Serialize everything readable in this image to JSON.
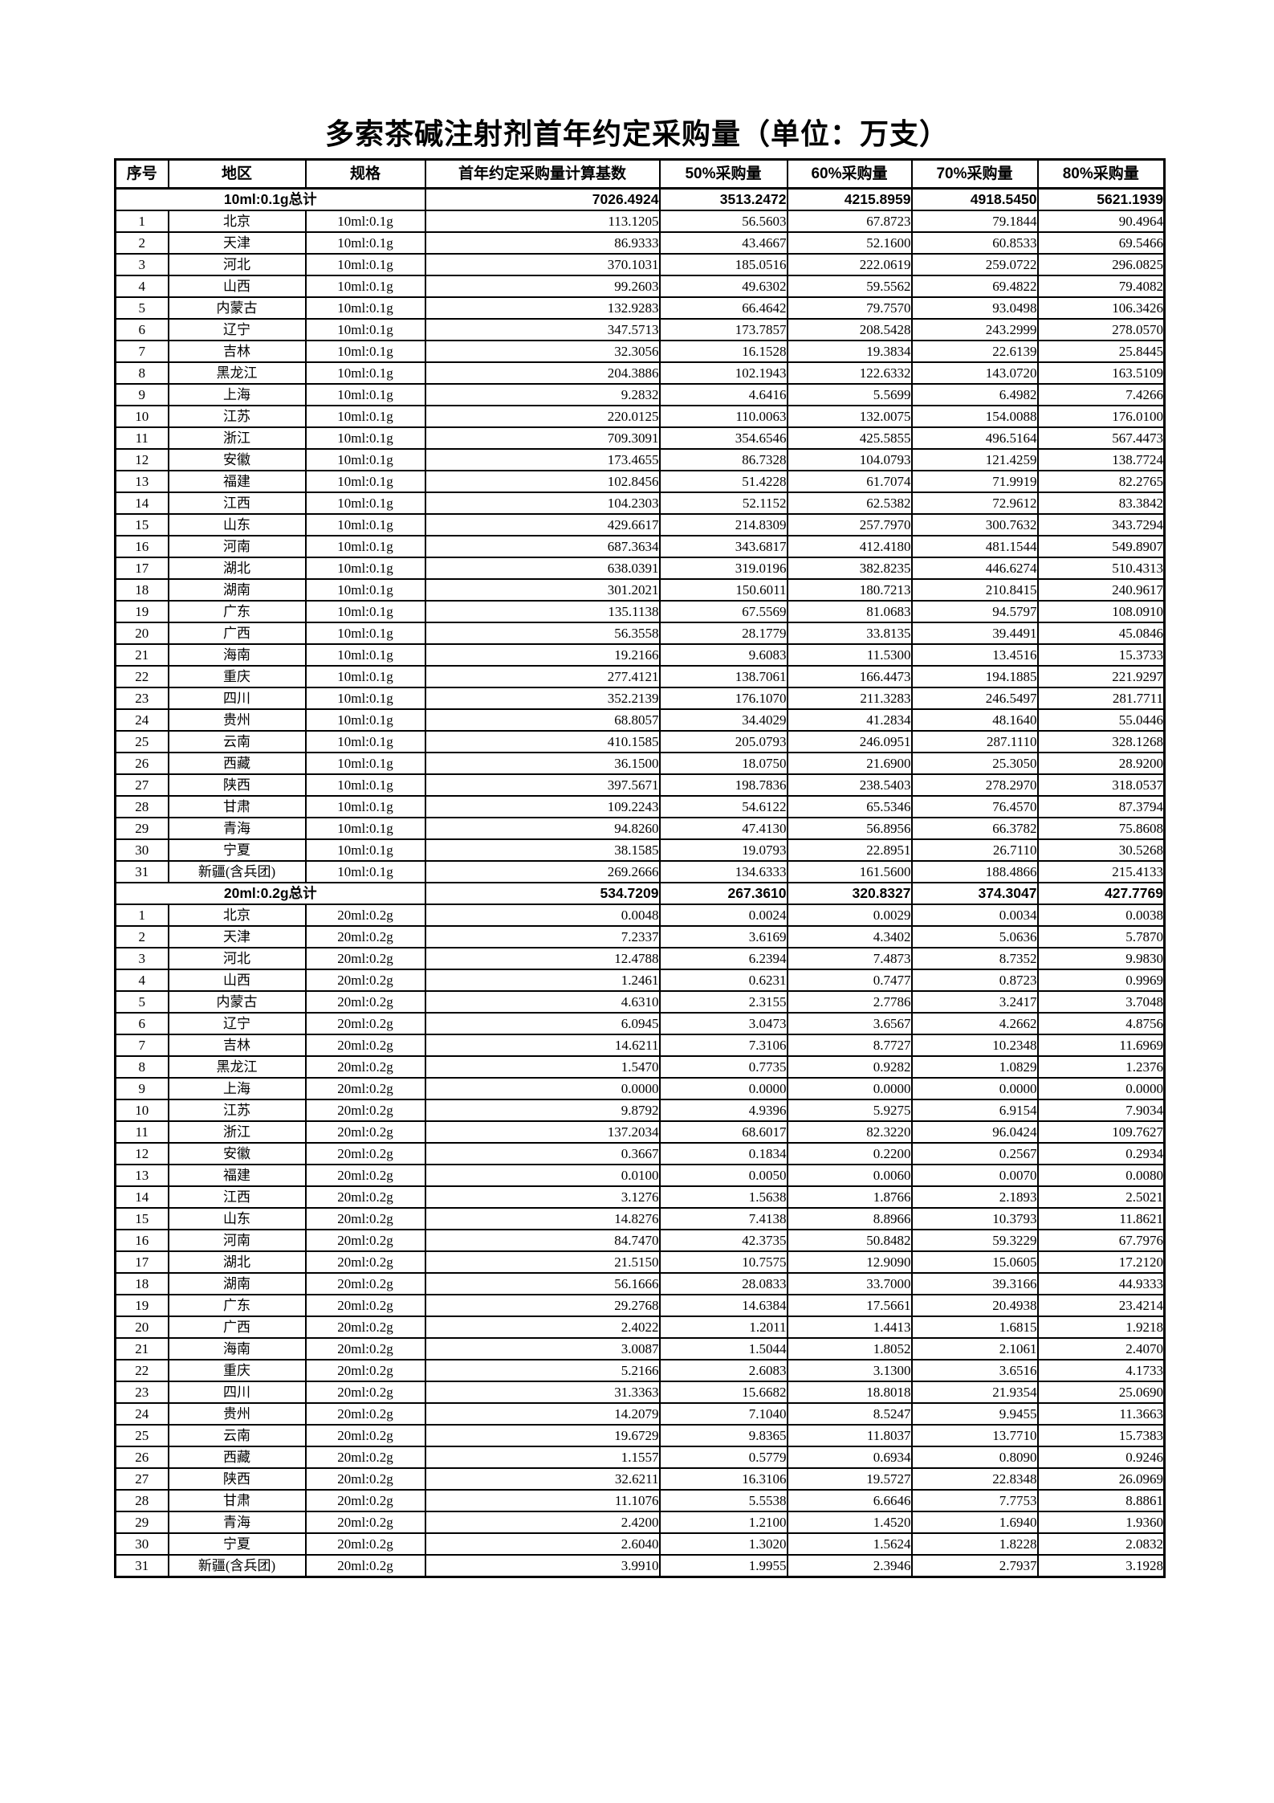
{
  "page": {
    "title": "多索茶碱注射剂首年约定采购量（单位：万支）"
  },
  "colors": {
    "text": "#000000",
    "background": "#ffffff",
    "border": "#000000"
  },
  "table": {
    "columns": [
      "序号",
      "地区",
      "规格",
      "首年约定采购量计算基数",
      "50%采购量",
      "60%采购量",
      "70%采购量",
      "80%采购量"
    ],
    "sections": [
      {
        "summary_label": "10ml:0.1g总计",
        "summary_values": [
          "7026.4924",
          "3513.2472",
          "4215.8959",
          "4918.5450",
          "5621.1939"
        ],
        "spec": "10ml:0.1g",
        "rows": [
          {
            "no": "1",
            "region": "北京",
            "values": [
              "113.1205",
              "56.5603",
              "67.8723",
              "79.1844",
              "90.4964"
            ]
          },
          {
            "no": "2",
            "region": "天津",
            "values": [
              "86.9333",
              "43.4667",
              "52.1600",
              "60.8533",
              "69.5466"
            ]
          },
          {
            "no": "3",
            "region": "河北",
            "values": [
              "370.1031",
              "185.0516",
              "222.0619",
              "259.0722",
              "296.0825"
            ]
          },
          {
            "no": "4",
            "region": "山西",
            "values": [
              "99.2603",
              "49.6302",
              "59.5562",
              "69.4822",
              "79.4082"
            ]
          },
          {
            "no": "5",
            "region": "内蒙古",
            "values": [
              "132.9283",
              "66.4642",
              "79.7570",
              "93.0498",
              "106.3426"
            ]
          },
          {
            "no": "6",
            "region": "辽宁",
            "values": [
              "347.5713",
              "173.7857",
              "208.5428",
              "243.2999",
              "278.0570"
            ]
          },
          {
            "no": "7",
            "region": "吉林",
            "values": [
              "32.3056",
              "16.1528",
              "19.3834",
              "22.6139",
              "25.8445"
            ]
          },
          {
            "no": "8",
            "region": "黑龙江",
            "values": [
              "204.3886",
              "102.1943",
              "122.6332",
              "143.0720",
              "163.5109"
            ]
          },
          {
            "no": "9",
            "region": "上海",
            "values": [
              "9.2832",
              "4.6416",
              "5.5699",
              "6.4982",
              "7.4266"
            ]
          },
          {
            "no": "10",
            "region": "江苏",
            "values": [
              "220.0125",
              "110.0063",
              "132.0075",
              "154.0088",
              "176.0100"
            ]
          },
          {
            "no": "11",
            "region": "浙江",
            "values": [
              "709.3091",
              "354.6546",
              "425.5855",
              "496.5164",
              "567.4473"
            ]
          },
          {
            "no": "12",
            "region": "安徽",
            "values": [
              "173.4655",
              "86.7328",
              "104.0793",
              "121.4259",
              "138.7724"
            ]
          },
          {
            "no": "13",
            "region": "福建",
            "values": [
              "102.8456",
              "51.4228",
              "61.7074",
              "71.9919",
              "82.2765"
            ]
          },
          {
            "no": "14",
            "region": "江西",
            "values": [
              "104.2303",
              "52.1152",
              "62.5382",
              "72.9612",
              "83.3842"
            ]
          },
          {
            "no": "15",
            "region": "山东",
            "values": [
              "429.6617",
              "214.8309",
              "257.7970",
              "300.7632",
              "343.7294"
            ]
          },
          {
            "no": "16",
            "region": "河南",
            "values": [
              "687.3634",
              "343.6817",
              "412.4180",
              "481.1544",
              "549.8907"
            ]
          },
          {
            "no": "17",
            "region": "湖北",
            "values": [
              "638.0391",
              "319.0196",
              "382.8235",
              "446.6274",
              "510.4313"
            ]
          },
          {
            "no": "18",
            "region": "湖南",
            "values": [
              "301.2021",
              "150.6011",
              "180.7213",
              "210.8415",
              "240.9617"
            ]
          },
          {
            "no": "19",
            "region": "广东",
            "values": [
              "135.1138",
              "67.5569",
              "81.0683",
              "94.5797",
              "108.0910"
            ]
          },
          {
            "no": "20",
            "region": "广西",
            "values": [
              "56.3558",
              "28.1779",
              "33.8135",
              "39.4491",
              "45.0846"
            ]
          },
          {
            "no": "21",
            "region": "海南",
            "values": [
              "19.2166",
              "9.6083",
              "11.5300",
              "13.4516",
              "15.3733"
            ]
          },
          {
            "no": "22",
            "region": "重庆",
            "values": [
              "277.4121",
              "138.7061",
              "166.4473",
              "194.1885",
              "221.9297"
            ]
          },
          {
            "no": "23",
            "region": "四川",
            "values": [
              "352.2139",
              "176.1070",
              "211.3283",
              "246.5497",
              "281.7711"
            ]
          },
          {
            "no": "24",
            "region": "贵州",
            "values": [
              "68.8057",
              "34.4029",
              "41.2834",
              "48.1640",
              "55.0446"
            ]
          },
          {
            "no": "25",
            "region": "云南",
            "values": [
              "410.1585",
              "205.0793",
              "246.0951",
              "287.1110",
              "328.1268"
            ]
          },
          {
            "no": "26",
            "region": "西藏",
            "values": [
              "36.1500",
              "18.0750",
              "21.6900",
              "25.3050",
              "28.9200"
            ]
          },
          {
            "no": "27",
            "region": "陕西",
            "values": [
              "397.5671",
              "198.7836",
              "238.5403",
              "278.2970",
              "318.0537"
            ]
          },
          {
            "no": "28",
            "region": "甘肃",
            "values": [
              "109.2243",
              "54.6122",
              "65.5346",
              "76.4570",
              "87.3794"
            ]
          },
          {
            "no": "29",
            "region": "青海",
            "values": [
              "94.8260",
              "47.4130",
              "56.8956",
              "66.3782",
              "75.8608"
            ]
          },
          {
            "no": "30",
            "region": "宁夏",
            "values": [
              "38.1585",
              "19.0793",
              "22.8951",
              "26.7110",
              "30.5268"
            ]
          },
          {
            "no": "31",
            "region": "新疆(含兵团)",
            "values": [
              "269.2666",
              "134.6333",
              "161.5600",
              "188.4866",
              "215.4133"
            ]
          }
        ]
      },
      {
        "summary_label": "20ml:0.2g总计",
        "summary_values": [
          "534.7209",
          "267.3610",
          "320.8327",
          "374.3047",
          "427.7769"
        ],
        "spec": "20ml:0.2g",
        "rows": [
          {
            "no": "1",
            "region": "北京",
            "values": [
              "0.0048",
              "0.0024",
              "0.0029",
              "0.0034",
              "0.0038"
            ]
          },
          {
            "no": "2",
            "region": "天津",
            "values": [
              "7.2337",
              "3.6169",
              "4.3402",
              "5.0636",
              "5.7870"
            ]
          },
          {
            "no": "3",
            "region": "河北",
            "values": [
              "12.4788",
              "6.2394",
              "7.4873",
              "8.7352",
              "9.9830"
            ]
          },
          {
            "no": "4",
            "region": "山西",
            "values": [
              "1.2461",
              "0.6231",
              "0.7477",
              "0.8723",
              "0.9969"
            ]
          },
          {
            "no": "5",
            "region": "内蒙古",
            "values": [
              "4.6310",
              "2.3155",
              "2.7786",
              "3.2417",
              "3.7048"
            ]
          },
          {
            "no": "6",
            "region": "辽宁",
            "values": [
              "6.0945",
              "3.0473",
              "3.6567",
              "4.2662",
              "4.8756"
            ]
          },
          {
            "no": "7",
            "region": "吉林",
            "values": [
              "14.6211",
              "7.3106",
              "8.7727",
              "10.2348",
              "11.6969"
            ]
          },
          {
            "no": "8",
            "region": "黑龙江",
            "values": [
              "1.5470",
              "0.7735",
              "0.9282",
              "1.0829",
              "1.2376"
            ]
          },
          {
            "no": "9",
            "region": "上海",
            "values": [
              "0.0000",
              "0.0000",
              "0.0000",
              "0.0000",
              "0.0000"
            ]
          },
          {
            "no": "10",
            "region": "江苏",
            "values": [
              "9.8792",
              "4.9396",
              "5.9275",
              "6.9154",
              "7.9034"
            ]
          },
          {
            "no": "11",
            "region": "浙江",
            "values": [
              "137.2034",
              "68.6017",
              "82.3220",
              "96.0424",
              "109.7627"
            ]
          },
          {
            "no": "12",
            "region": "安徽",
            "values": [
              "0.3667",
              "0.1834",
              "0.2200",
              "0.2567",
              "0.2934"
            ]
          },
          {
            "no": "13",
            "region": "福建",
            "values": [
              "0.0100",
              "0.0050",
              "0.0060",
              "0.0070",
              "0.0080"
            ]
          },
          {
            "no": "14",
            "region": "江西",
            "values": [
              "3.1276",
              "1.5638",
              "1.8766",
              "2.1893",
              "2.5021"
            ]
          },
          {
            "no": "15",
            "region": "山东",
            "values": [
              "14.8276",
              "7.4138",
              "8.8966",
              "10.3793",
              "11.8621"
            ]
          },
          {
            "no": "16",
            "region": "河南",
            "values": [
              "84.7470",
              "42.3735",
              "50.8482",
              "59.3229",
              "67.7976"
            ]
          },
          {
            "no": "17",
            "region": "湖北",
            "values": [
              "21.5150",
              "10.7575",
              "12.9090",
              "15.0605",
              "17.2120"
            ]
          },
          {
            "no": "18",
            "region": "湖南",
            "values": [
              "56.1666",
              "28.0833",
              "33.7000",
              "39.3166",
              "44.9333"
            ]
          },
          {
            "no": "19",
            "region": "广东",
            "values": [
              "29.2768",
              "14.6384",
              "17.5661",
              "20.4938",
              "23.4214"
            ]
          },
          {
            "no": "20",
            "region": "广西",
            "values": [
              "2.4022",
              "1.2011",
              "1.4413",
              "1.6815",
              "1.9218"
            ]
          },
          {
            "no": "21",
            "region": "海南",
            "values": [
              "3.0087",
              "1.5044",
              "1.8052",
              "2.1061",
              "2.4070"
            ]
          },
          {
            "no": "22",
            "region": "重庆",
            "values": [
              "5.2166",
              "2.6083",
              "3.1300",
              "3.6516",
              "4.1733"
            ]
          },
          {
            "no": "23",
            "region": "四川",
            "values": [
              "31.3363",
              "15.6682",
              "18.8018",
              "21.9354",
              "25.0690"
            ]
          },
          {
            "no": "24",
            "region": "贵州",
            "values": [
              "14.2079",
              "7.1040",
              "8.5247",
              "9.9455",
              "11.3663"
            ]
          },
          {
            "no": "25",
            "region": "云南",
            "values": [
              "19.6729",
              "9.8365",
              "11.8037",
              "13.7710",
              "15.7383"
            ]
          },
          {
            "no": "26",
            "region": "西藏",
            "values": [
              "1.1557",
              "0.5779",
              "0.6934",
              "0.8090",
              "0.9246"
            ]
          },
          {
            "no": "27",
            "region": "陕西",
            "values": [
              "32.6211",
              "16.3106",
              "19.5727",
              "22.8348",
              "26.0969"
            ]
          },
          {
            "no": "28",
            "region": "甘肃",
            "values": [
              "11.1076",
              "5.5538",
              "6.6646",
              "7.7753",
              "8.8861"
            ]
          },
          {
            "no": "29",
            "region": "青海",
            "values": [
              "2.4200",
              "1.2100",
              "1.4520",
              "1.6940",
              "1.9360"
            ]
          },
          {
            "no": "30",
            "region": "宁夏",
            "values": [
              "2.6040",
              "1.3020",
              "1.5624",
              "1.8228",
              "2.0832"
            ]
          },
          {
            "no": "31",
            "region": "新疆(含兵团)",
            "values": [
              "3.9910",
              "1.9955",
              "2.3946",
              "2.7937",
              "3.1928"
            ]
          }
        ]
      }
    ]
  }
}
